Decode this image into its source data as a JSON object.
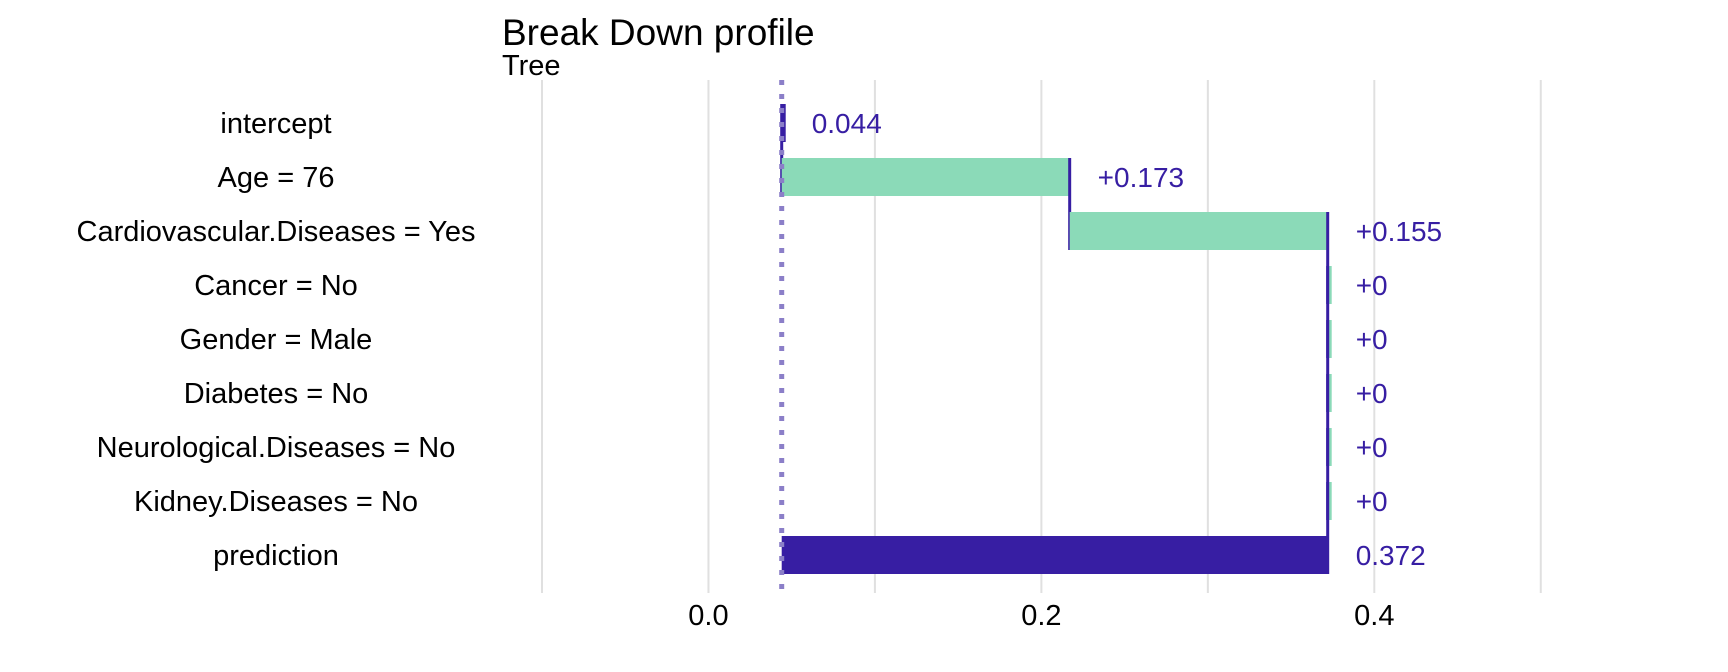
{
  "chart_data": {
    "type": "bar",
    "title": "Break Down profile",
    "subtitle": "Tree",
    "categories": [
      "intercept",
      "Age = 76",
      "Cardiovascular.Diseases = Yes",
      "Cancer = No",
      "Gender = Male",
      "Diabetes = No",
      "Neurological.Diseases = No",
      "Kidney.Diseases = No",
      "prediction"
    ],
    "values": [
      0.044,
      0.173,
      0.155,
      0,
      0,
      0,
      0,
      0,
      0.372
    ],
    "data_labels": [
      "0.044",
      "+0.173",
      "+0.155",
      "+0",
      "+0",
      "+0",
      "+0",
      "+0",
      "0.372"
    ],
    "xlim": [
      -0.1,
      0.55
    ],
    "x_ticks": [
      0.0,
      0.2,
      0.4
    ],
    "x_tick_labels": [
      "0.0",
      "0.2",
      "0.4"
    ],
    "x_gridlines": [
      -0.1,
      0.0,
      0.1,
      0.2,
      0.3,
      0.4,
      0.5
    ],
    "baseline": 0.044,
    "grid": true,
    "legend": "none",
    "colors": {
      "positive": "#8bdab8",
      "prediction": "#371ea3",
      "connector": "#371ea3",
      "baseline": "#8b7fc8",
      "label": "#371ea3",
      "grid": "#e0e0e0"
    }
  }
}
